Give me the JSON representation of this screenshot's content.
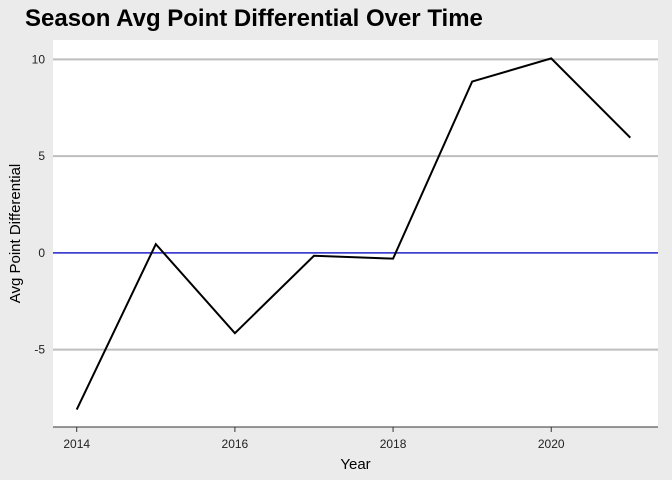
{
  "chart_data": {
    "type": "line",
    "title": "Season Avg Point Differential Over Time",
    "xlabel": "Year",
    "ylabel": "Avg Point Differential",
    "x": [
      2014,
      2015,
      2016,
      2017,
      2018,
      2019,
      2020,
      2021
    ],
    "series": [
      {
        "values": [
          -8.1,
          0.45,
          -4.15,
          -0.15,
          -0.3,
          8.85,
          10.05,
          5.95
        ],
        "color": "#000000"
      }
    ],
    "xlim": [
      2013.7,
      2021.35
    ],
    "ylim": [
      -9.0,
      11.0
    ],
    "x_ticks": [
      2014,
      2016,
      2018,
      2020
    ],
    "x_tick_labels": [
      "2014",
      "2016",
      "2018",
      "2020"
    ],
    "y_ticks": [
      -5,
      0,
      5,
      10
    ],
    "y_tick_labels": [
      "-5",
      "0",
      "5",
      "10"
    ],
    "reference_line": {
      "y": 0,
      "color": "#2222cc"
    },
    "grid": true,
    "panel_color": "#ffffff",
    "background_color": "#ebebeb",
    "gridline_color": "#bebebe"
  }
}
